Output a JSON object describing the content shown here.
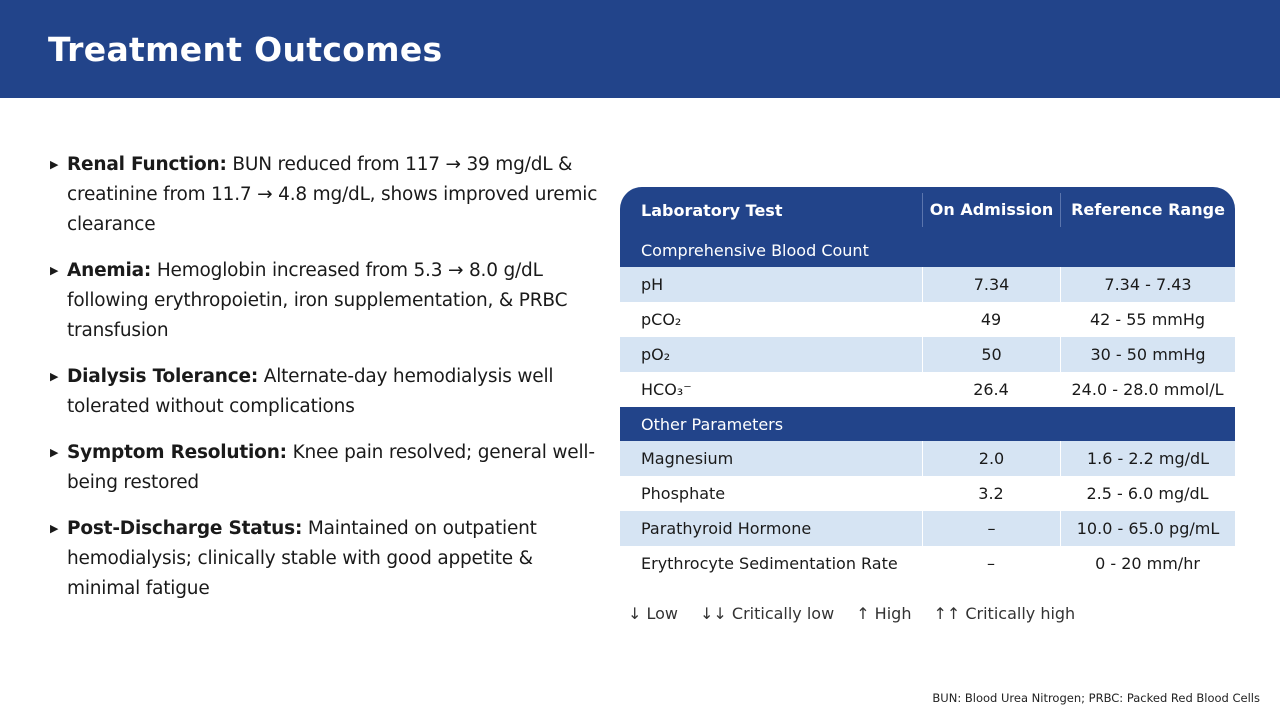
{
  "header": {
    "title": "Treatment Outcomes"
  },
  "bullets": [
    {
      "label": "Renal Function:",
      "text": "BUN reduced from 117 → 39 mg/dL & creatinine from 11.7 → 4.8 mg/dL, shows improved uremic clearance"
    },
    {
      "label": "Anemia:",
      "text": "Hemoglobin increased from 5.3 → 8.0 g/dL following erythropoietin, iron supplementation, & PRBC transfusion"
    },
    {
      "label": "Dialysis Tolerance:",
      "text": "Alternate-day hemodialysis well tolerated without complications"
    },
    {
      "label": "Symptom Resolution:",
      "text": "Knee pain resolved; general well-being restored"
    },
    {
      "label": "Post-Discharge Status:",
      "text": "Maintained on outpatient hemodialysis; clinically stable with good appetite & minimal fatigue"
    }
  ],
  "table": {
    "headers": [
      "Laboratory Test",
      "On Admission",
      "Reference Range"
    ],
    "sections": [
      {
        "title": "Comprehensive Blood Count",
        "rows": [
          [
            "pH",
            "7.34",
            "7.34 - 7.43"
          ],
          [
            "pCO₂",
            "49",
            "42 - 55 mmHg"
          ],
          [
            "pO₂",
            "50",
            "30 - 50 mmHg"
          ],
          [
            "HCO₃⁻",
            "26.4",
            "24.0 - 28.0 mmol/L"
          ]
        ]
      },
      {
        "title": "Other Parameters",
        "rows": [
          [
            "Magnesium",
            "2.0",
            "1.6 - 2.2 mg/dL"
          ],
          [
            "Phosphate",
            "3.2",
            "2.5 - 6.0 mg/dL"
          ],
          [
            "Parathyroid Hormone",
            "–",
            "10.0 - 65.0 pg/mL"
          ],
          [
            "Erythrocyte Sedimentation Rate",
            "–",
            "0 - 20 mm/hr"
          ]
        ]
      }
    ]
  },
  "legend": [
    "↓ Low",
    "↓↓ Critically low",
    "↑ High",
    "↑↑ Critically high"
  ],
  "footnote": "BUN: Blood Urea Nitrogen; PRBC: Packed Red Blood Cells",
  "colors": {
    "brand": "#22448a",
    "row_alt": "#d6e4f3"
  }
}
